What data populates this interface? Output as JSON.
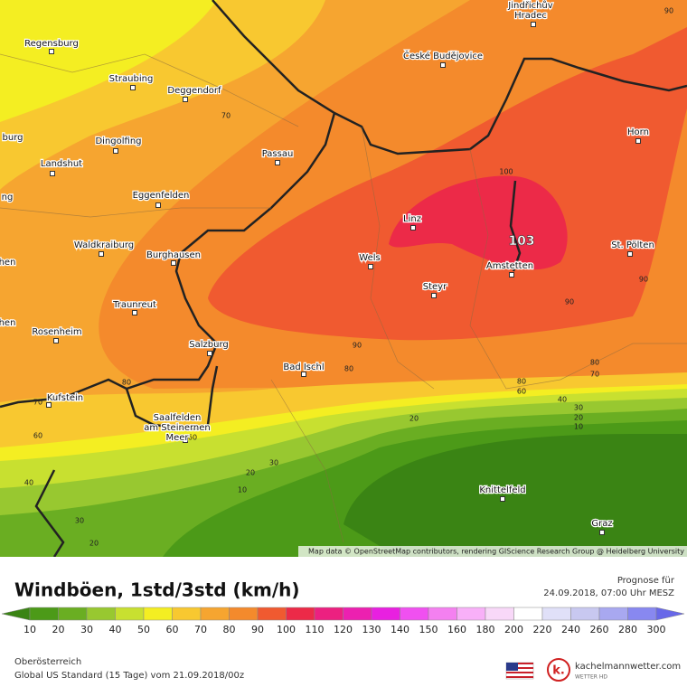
{
  "map": {
    "cities": [
      {
        "lines": [
          "Regensburg"
        ]
      },
      {
        "lines": [
          "Straubing"
        ]
      },
      {
        "lines": [
          "Deggendorf"
        ]
      },
      {
        "lines": [
          "Jindřichův",
          "Hradec"
        ]
      },
      {
        "lines": [
          "České Budějovice"
        ]
      },
      {
        "lines": [
          "burg"
        ]
      },
      {
        "lines": [
          "Dingolfing"
        ]
      },
      {
        "lines": [
          "Landshut"
        ]
      },
      {
        "lines": [
          "Passau"
        ]
      },
      {
        "lines": [
          "Horn"
        ]
      },
      {
        "lines": [
          "Eggenfelden"
        ]
      },
      {
        "lines": [
          "ng"
        ]
      },
      {
        "lines": [
          "Linz"
        ]
      },
      {
        "lines": [
          "hen"
        ]
      },
      {
        "lines": [
          "Waldkraiburg"
        ]
      },
      {
        "lines": [
          "St. Pölten"
        ]
      },
      {
        "lines": [
          "Burghausen"
        ]
      },
      {
        "lines": [
          "Wels"
        ]
      },
      {
        "lines": [
          "Amstetten"
        ]
      },
      {
        "lines": [
          "Steyr"
        ]
      },
      {
        "lines": [
          "Traunreut"
        ]
      },
      {
        "lines": [
          "hen"
        ]
      },
      {
        "lines": [
          "Rosenheim"
        ]
      },
      {
        "lines": [
          "Salzburg"
        ]
      },
      {
        "lines": [
          "Bad Ischl"
        ]
      },
      {
        "lines": [
          "Kufstein"
        ]
      },
      {
        "lines": [
          "Saalfelden",
          "am Steinernen",
          "Meer"
        ]
      },
      {
        "lines": [
          "Knittelfeld"
        ]
      },
      {
        "lines": [
          "Graz"
        ]
      }
    ],
    "contour_labels": [
      "90",
      "70",
      "100",
      "90",
      "90",
      "90",
      "80",
      "80",
      "80",
      "60",
      "80",
      "70",
      "70",
      "40",
      "30",
      "20",
      "10",
      "20",
      "60",
      "60",
      "30",
      "20",
      "10",
      "40",
      "30",
      "20"
    ],
    "max_label": "103",
    "attribution": "Map data © OpenStreetMap contributors, rendering GIScience Research Group @ Heidelberg University"
  },
  "legend": {
    "title": "Windböen, 1std/3std (km/h)",
    "forecast_label": "Prognose für",
    "forecast_time": "24.09.2018, 07:00 Uhr MESZ",
    "labels": [
      10,
      20,
      30,
      40,
      50,
      60,
      70,
      80,
      90,
      100,
      110,
      120,
      130,
      140,
      150,
      160,
      180,
      200,
      220,
      240,
      260,
      280,
      300
    ],
    "colors": [
      "#3a8414",
      "#4c9a18",
      "#6aae22",
      "#98c830",
      "#c8e030",
      "#f4ee22",
      "#f8c830",
      "#f6a530",
      "#f48a2c",
      "#f05a30",
      "#ec2a48",
      "#ec2080",
      "#ec20b0",
      "#e820e0",
      "#f050f0",
      "#f480f0",
      "#f8b0f8",
      "#f8d8f8",
      "#ffffff",
      "#e0e0f8",
      "#c8c8f0",
      "#a8a8f0",
      "#8888f0",
      "#6868e8"
    ]
  },
  "footer": {
    "region": "Oberösterreich",
    "model": "Global US Standard (15 Tage) vom 21.09.2018/00z",
    "brand": "kachelmannwetter.com",
    "brand_sub": "WETTER HD"
  }
}
